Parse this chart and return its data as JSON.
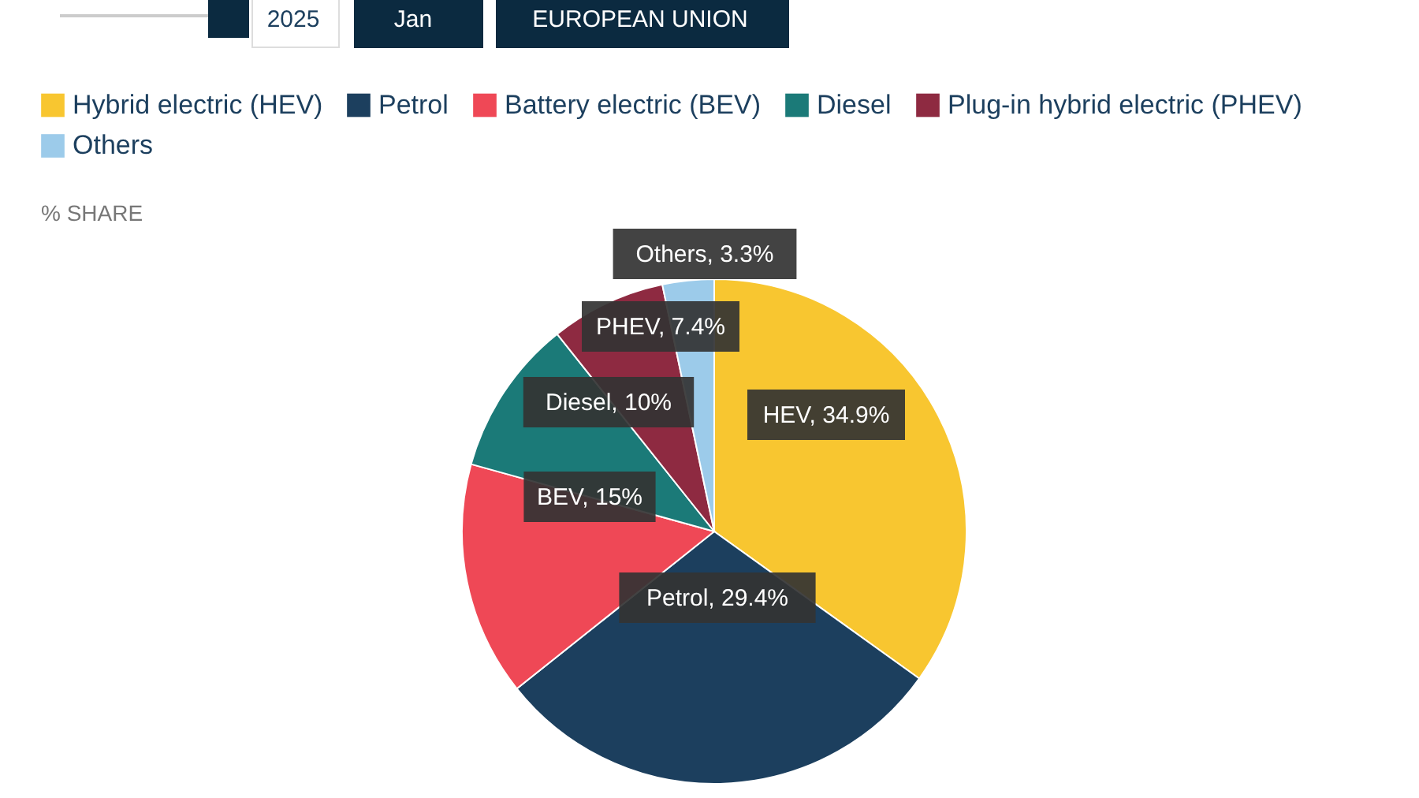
{
  "chart_data": {
    "type": "pie",
    "categories": [
      "Hybrid electric (HEV)",
      "Petrol",
      "Battery electric (BEV)",
      "Diesel",
      "Plug-in hybrid electric (PHEV)",
      "Others"
    ],
    "values": [
      34.9,
      29.4,
      15,
      10,
      7.4,
      3.3
    ],
    "colors": [
      "#f8c630",
      "#1c3f5e",
      "#ef4856",
      "#1b7a78",
      "#8e2a41",
      "#9ccbea"
    ],
    "value_labels": [
      "HEV, 34.9%",
      "Petrol, 29.4%",
      "BEV, 15%",
      "Diesel, 10%",
      "PHEV, 7.4%",
      "Others, 3.3%"
    ],
    "legend": "top",
    "annotations": [
      "2025",
      "Jan",
      "EUROPEAN UNION",
      "% SHARE"
    ]
  }
}
